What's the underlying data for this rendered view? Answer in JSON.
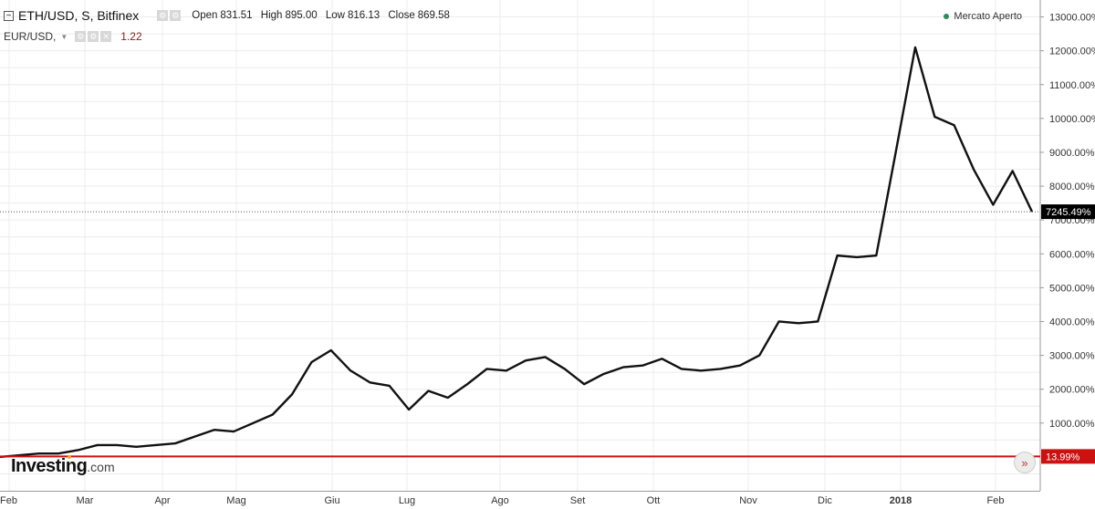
{
  "header": {
    "symbol": "ETH/USD, S, Bitfinex",
    "ohlc": [
      {
        "label": "Open",
        "value": "831.51"
      },
      {
        "label": "High",
        "value": "895.00"
      },
      {
        "label": "Low",
        "value": "816.13"
      },
      {
        "label": "Close",
        "value": "869.58"
      }
    ],
    "compare_symbol": "EUR/USD,",
    "compare_value": "1.22",
    "market_status": "Mercato Aperto"
  },
  "logo": {
    "brand": "Investing",
    "suffix": ".com"
  },
  "colors": {
    "main_line": "#111111",
    "compare_line": "#cc1111",
    "grid": "#ececec",
    "last_badge": "#000000",
    "compare_badge": "#cc1111",
    "status_dot": "#2e8b57"
  },
  "chart_data": {
    "type": "line",
    "x_tick_labels": [
      "Feb",
      "Mar",
      "Apr",
      "Mag",
      "Giu",
      "Lug",
      "Ago",
      "Set",
      "Ott",
      "Nov",
      "Dic",
      "2018",
      "Feb"
    ],
    "ylim": [
      -1000,
      13500
    ],
    "y_ticks": [
      1000,
      2000,
      3000,
      4000,
      5000,
      6000,
      7000,
      8000,
      9000,
      10000,
      11000,
      12000,
      13000
    ],
    "y_tick_labels": [
      "1000.00%",
      "2000.00%",
      "3000.00%",
      "4000.00%",
      "5000.00%",
      "6000.00%",
      "7000.00%",
      "8000.00%",
      "9000.00%",
      "10000.00%",
      "11000.00%",
      "12000.00%",
      "13000.00%"
    ],
    "grid": true,
    "series": [
      {
        "name": "ETH/USD",
        "values": [
          0,
          50,
          100,
          100,
          200,
          350,
          350,
          300,
          350,
          400,
          600,
          800,
          750,
          1000,
          1250,
          1850,
          2800,
          3150,
          2550,
          2200,
          2100,
          1400,
          1950,
          1750,
          2150,
          2600,
          2550,
          2850,
          2950,
          2600,
          2150,
          2450,
          2650,
          2700,
          2900,
          2600,
          2550,
          2600,
          2700,
          3000,
          4000,
          3950,
          4000,
          5950,
          5900,
          5950,
          9000,
          12100,
          10050,
          9800,
          8500,
          7450,
          8450,
          7245
        ]
      },
      {
        "name": "EUR/USD",
        "values": [
          0,
          14
        ]
      }
    ],
    "last_value_label": "7245.49%",
    "compare_last_label": "13.99%"
  }
}
